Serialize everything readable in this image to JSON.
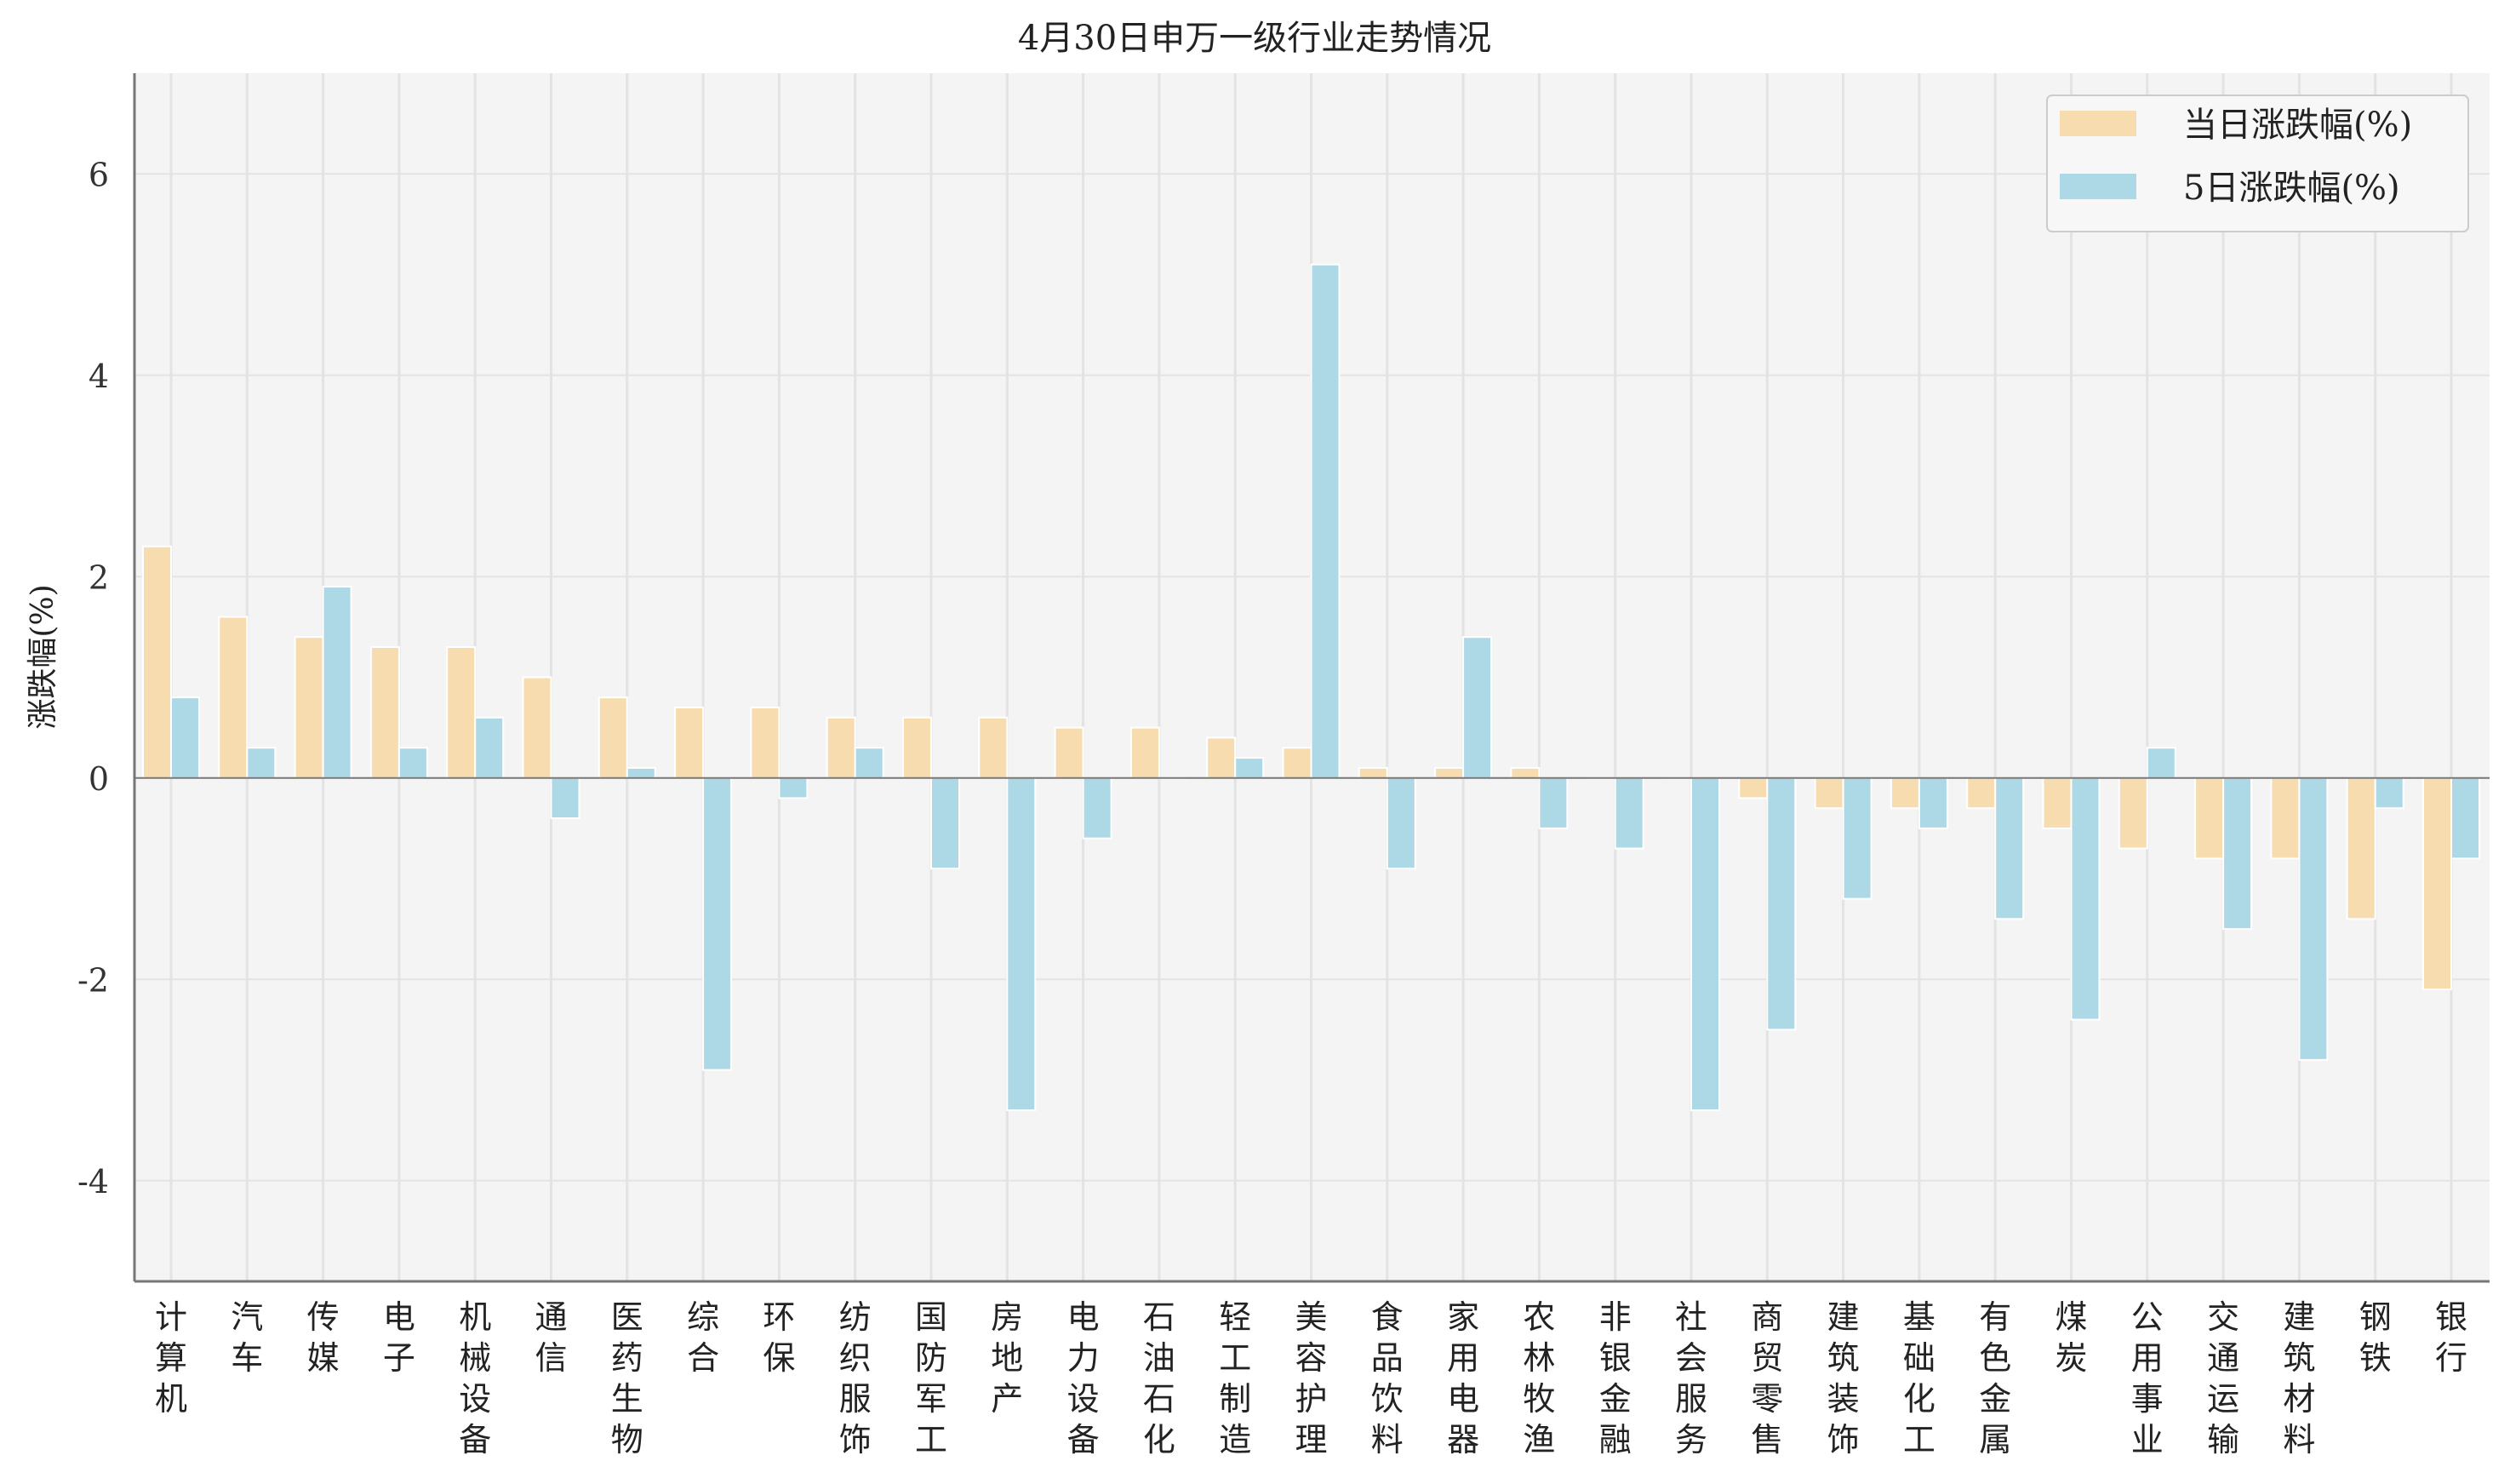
{
  "chart_data": {
    "type": "bar",
    "title": "4月30日申万一级行业走势情况",
    "xlabel": "",
    "ylabel": "涨跌幅(%)",
    "ylim": [
      -5,
      7
    ],
    "yticks": [
      6,
      4,
      2,
      0,
      -2,
      -4
    ],
    "grid": true,
    "legend_position": "top-right",
    "categories": [
      "计算机",
      "汽车",
      "传媒",
      "电子",
      "机械设备",
      "通信",
      "医药生物",
      "综合",
      "环保",
      "纺织服饰",
      "国防军工",
      "房地产",
      "电力设备",
      "石油石化",
      "轻工制造",
      "美容护理",
      "食品饮料",
      "家用电器",
      "农林牧渔",
      "非银金融",
      "社会服务",
      "商贸零售",
      "建筑装饰",
      "基础化工",
      "有色金属",
      "煤炭",
      "公用事业",
      "交通运输",
      "建筑材料",
      "钢铁",
      "银行"
    ],
    "series": [
      {
        "name": "当日涨跌幅(%)",
        "color": "#F6DCAE",
        "values": [
          2.3,
          1.6,
          1.4,
          1.3,
          1.3,
          1.0,
          0.8,
          0.7,
          0.7,
          0.6,
          0.6,
          0.6,
          0.5,
          0.5,
          0.4,
          0.3,
          0.1,
          0.1,
          0.1,
          0.0,
          0.0,
          -0.2,
          -0.3,
          -0.3,
          -0.3,
          -0.5,
          -0.7,
          -0.8,
          -0.8,
          -1.4,
          -2.1
        ],
        "labels": [
          "2.3",
          "1.6",
          "1.4",
          "1.3",
          "1.3",
          "1.0",
          "0.8",
          "0.7",
          "0.7",
          "0.6",
          "0.6",
          "0.6",
          "0.5",
          "0.5",
          "0.4",
          "0.3",
          "0.1",
          "0.1",
          "0.1",
          "0.0",
          "0.0",
          "-0.2",
          "-0.3",
          "-0.3",
          "-0.3",
          "-0.5",
          "-0.7",
          "-0.8",
          "-0.8",
          "-1.4",
          "-2.1"
        ]
      },
      {
        "name": "5日涨跌幅(%)",
        "color": "#ADD8E6",
        "values": [
          0.8,
          0.3,
          1.9,
          0.3,
          0.6,
          -0.4,
          0.1,
          -2.9,
          -0.2,
          0.3,
          -0.9,
          -3.3,
          -0.6,
          0.0,
          0.2,
          5.1,
          -0.9,
          1.4,
          -0.5,
          -0.7,
          -3.3,
          -2.5,
          -1.2,
          -0.5,
          -1.4,
          -2.4,
          0.3,
          -1.5,
          -2.8,
          -0.3,
          -0.8
        ],
        "labels": [
          "0.8",
          "0.3",
          "1.9",
          "0.3",
          "0.6",
          "-0.4",
          "0.1",
          "-2.9",
          "-0.2",
          "0.3",
          "-0.9",
          "-3.3",
          "-0.6",
          "0.0",
          "0.2",
          "5.1",
          "-0.9",
          "1.4",
          "-0.5",
          "-0.7",
          "-3.3",
          "-2.5",
          "-1.2",
          "-0.5",
          "-1.4",
          "-2.4",
          "0.3",
          "-1.5",
          "-2.8",
          "-0.3",
          "-0.8"
        ]
      }
    ],
    "colors": {
      "plot_bg": "#F4F4F4",
      "grid": "#E3E3E3",
      "axis": "#777777",
      "zero_line": "#777777"
    }
  }
}
